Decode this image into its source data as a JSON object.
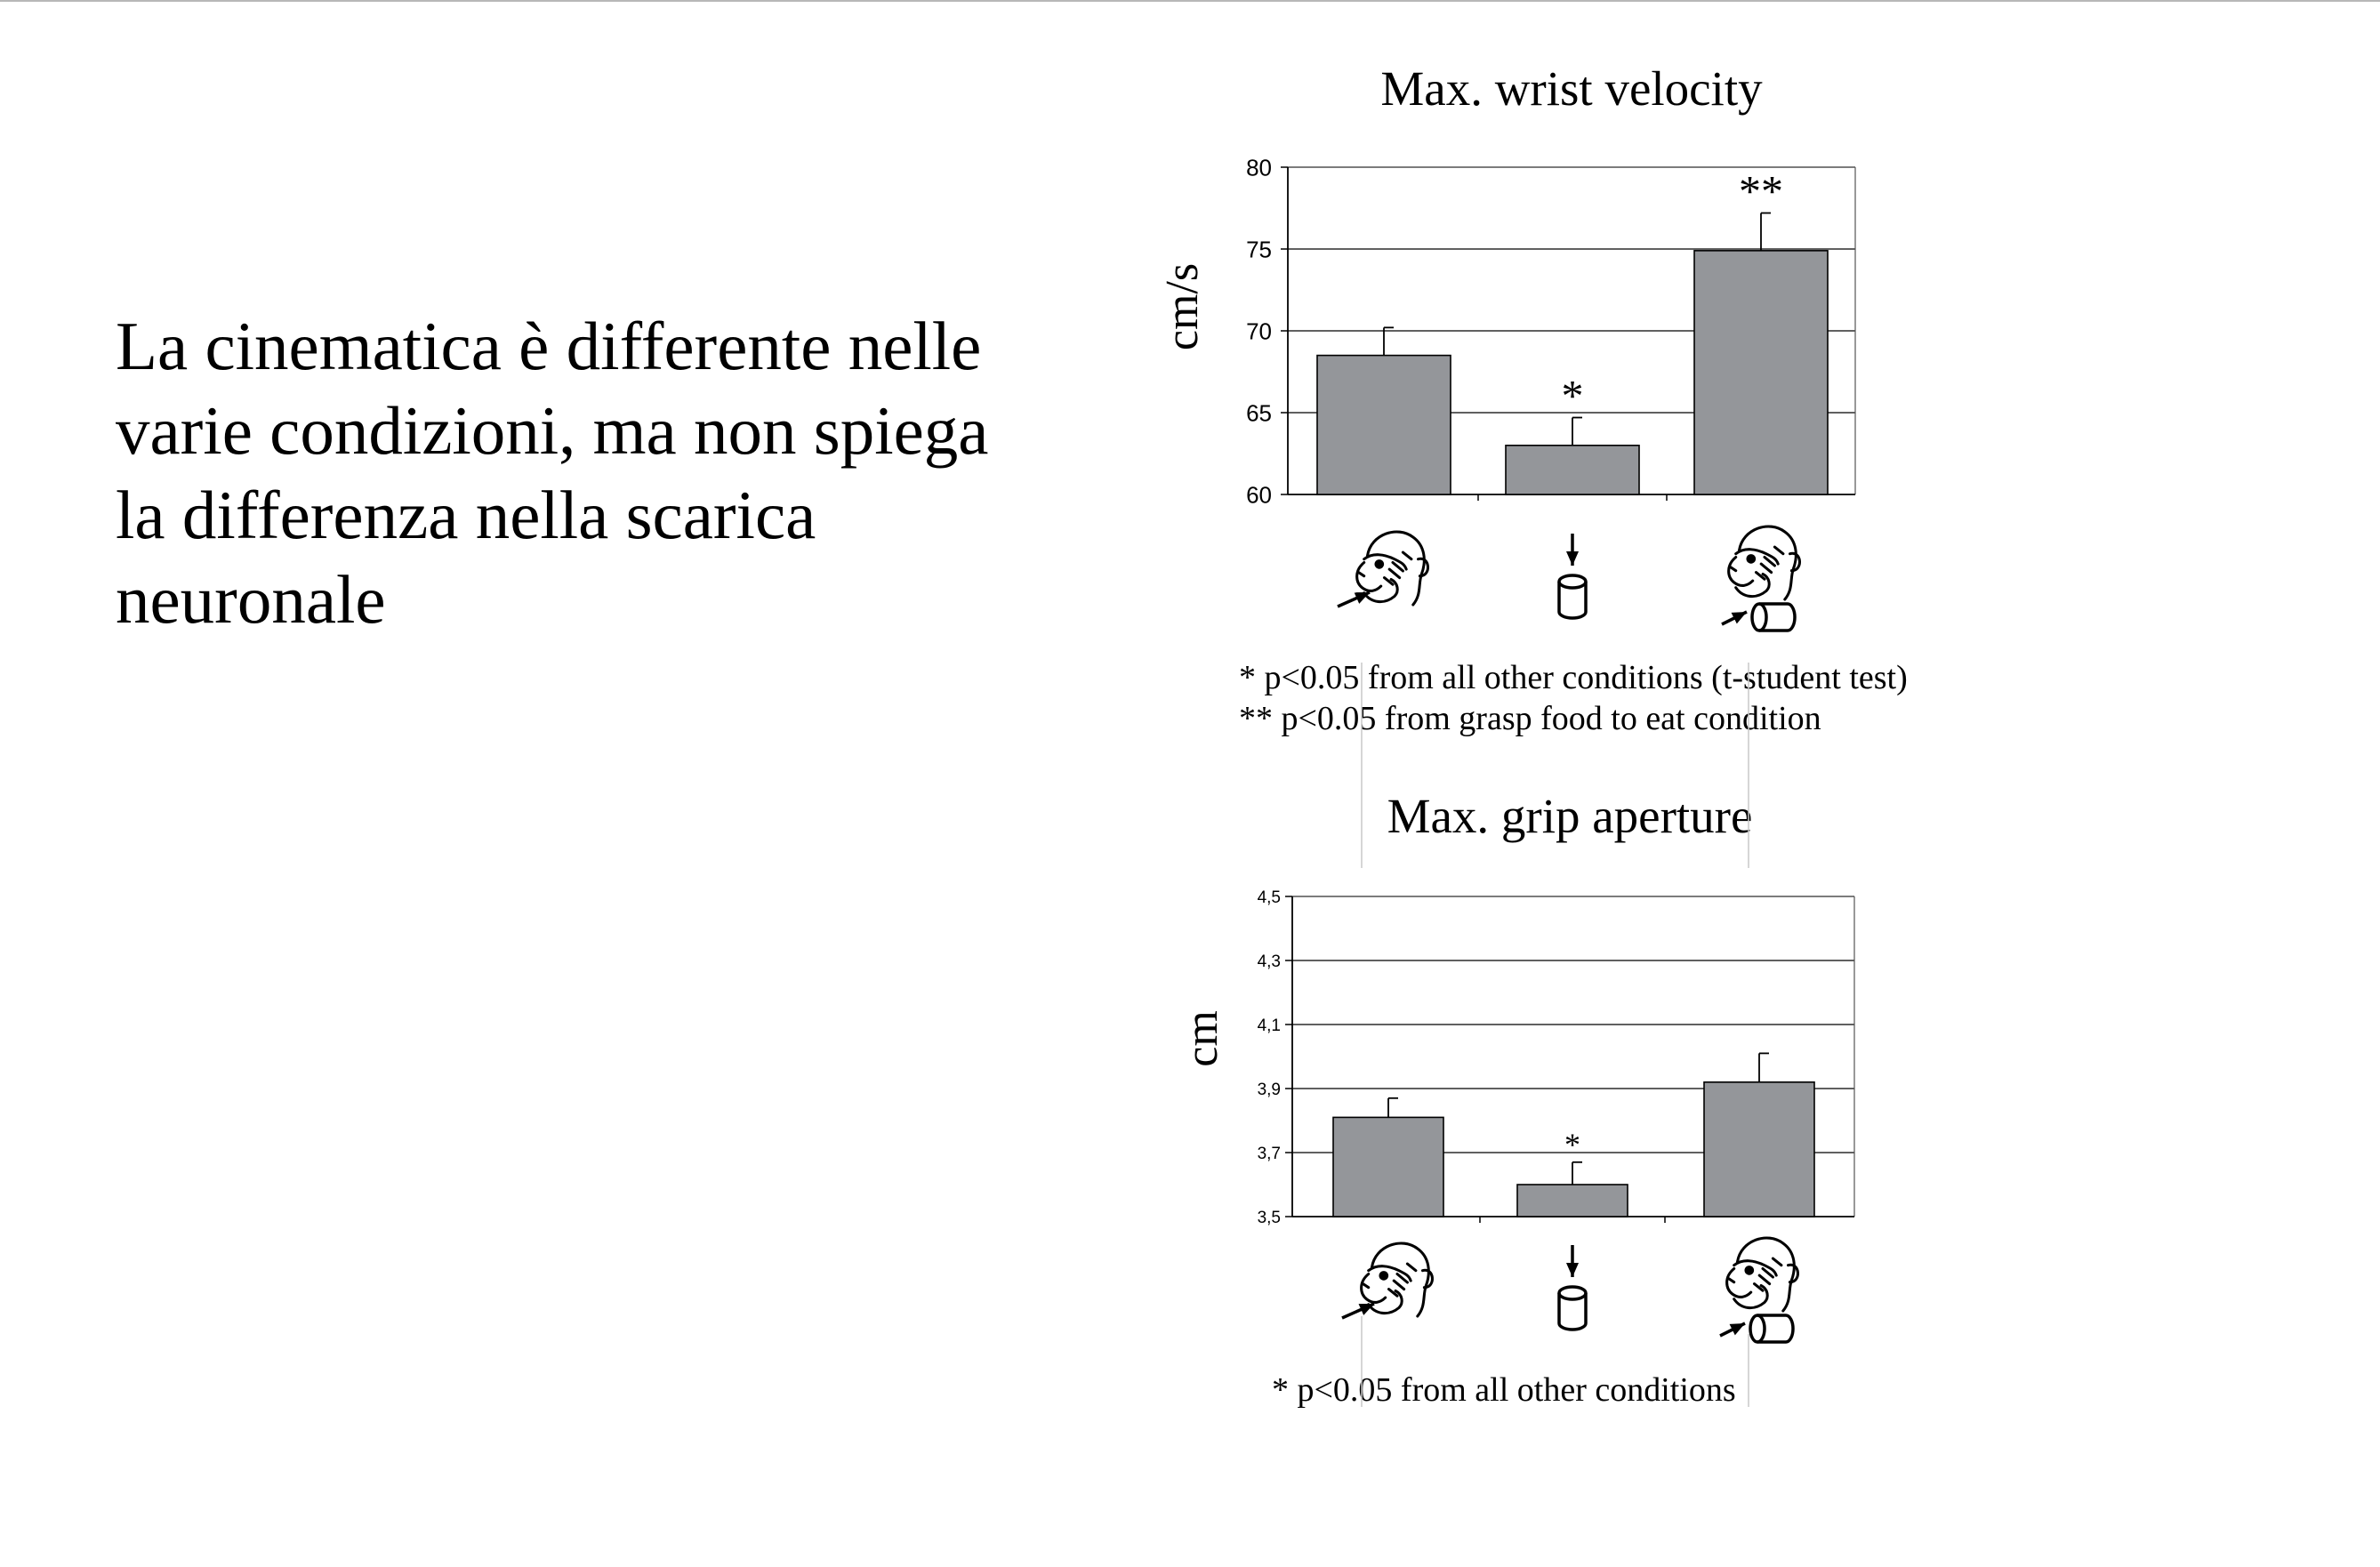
{
  "slide": {
    "text_lines": [
      "La cinematica è differente nelle",
      "varie condizioni, ma non spiega",
      "la differenza nella scarica",
      "neuronale"
    ]
  },
  "chart_data": [
    {
      "type": "bar",
      "title": "Max. wrist velocity",
      "ylabel": "cm/s",
      "xlabel": "",
      "categories": [
        "",
        "",
        ""
      ],
      "category_icons": [
        "monkey-mouth-grasp-icon",
        "container-place-icon",
        "monkey-container-grasp-icon"
      ],
      "values": [
        68.5,
        63.0,
        74.9
      ],
      "errors": [
        1.7,
        1.7,
        2.3
      ],
      "significance": [
        "",
        "*",
        "**"
      ],
      "ylim": [
        60,
        80
      ],
      "yticks": [
        60,
        65,
        70,
        75,
        80
      ],
      "ytick_labels": [
        "60",
        "65",
        "70",
        "75",
        "80"
      ],
      "grid": true,
      "bar_color": "#94969a",
      "footnotes": [
        "* p<0.05 from all other conditions (t-student test)",
        "** p<0.05 from grasp food to eat condition"
      ]
    },
    {
      "type": "bar",
      "title": "Max. grip aperture",
      "ylabel": "cm",
      "xlabel": "",
      "categories": [
        "",
        "",
        ""
      ],
      "category_icons": [
        "monkey-mouth-grasp-icon",
        "container-place-icon",
        "monkey-container-grasp-icon"
      ],
      "values": [
        3.81,
        3.6,
        3.92
      ],
      "errors": [
        0.06,
        0.07,
        0.09
      ],
      "significance": [
        "",
        "*",
        ""
      ],
      "ylim": [
        3.5,
        4.5
      ],
      "yticks": [
        3.5,
        3.7,
        3.9,
        4.1,
        4.3,
        4.5
      ],
      "ytick_labels": [
        "3,5",
        "3,7",
        "3,9",
        "4,1",
        "4,3",
        "4,5"
      ],
      "grid": true,
      "bar_color": "#94969a",
      "footnotes": [
        "* p<0.05 from all other conditions"
      ]
    }
  ]
}
